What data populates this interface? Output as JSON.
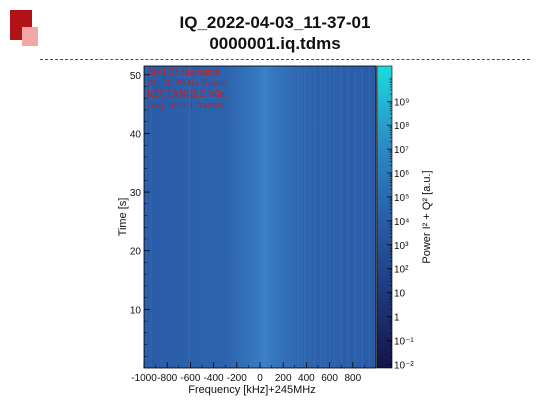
{
  "header": {
    "title_line1": "IQ_2022-04-03_11-37-01",
    "title_line2": "0000001.iq.tdms"
  },
  "colors": {
    "logo_dark": "#b01218",
    "logo_light": "#f2a6a6",
    "divider": "#c8181e",
    "annotation": "#c0201f",
    "palette_low": "#1a1a52",
    "palette_mid": "#2a64ae",
    "palette_high": "#19d9dc"
  },
  "chart_data": {
    "type": "heatmap",
    "xlabel": "Frequency [kHz]+245MHz",
    "ylabel": "Time [s]",
    "zlabel": "Power I² + Q² [a.u.]",
    "x_ticks": [
      -1000,
      -800,
      -600,
      -400,
      -200,
      0,
      200,
      400,
      600,
      800
    ],
    "x_tick_labels": [
      "-1000",
      "-800",
      "-600",
      "-400",
      "-200",
      "0",
      "200",
      "400",
      "600",
      "800"
    ],
    "xlim": [
      -1000,
      1000
    ],
    "y_ticks": [
      10,
      20,
      30,
      40,
      50
    ],
    "y_tick_labels": [
      "10",
      "20",
      "30",
      "40",
      "50"
    ],
    "ylim": [
      0,
      51.5
    ],
    "z_scale": "log",
    "z_ticks": [
      0.01,
      0.1,
      1,
      10,
      100,
      1000,
      10000,
      100000,
      1000000,
      10000000,
      100000000,
      1000000000
    ],
    "z_tick_labels": [
      "10⁻²",
      "10⁻¹",
      "1",
      "10",
      "10²",
      "10³",
      "10⁴",
      "10⁵",
      "10⁶",
      "10⁷",
      "10⁸",
      "10⁹"
    ],
    "zlim": [
      0.007,
      30000000000
    ],
    "annotations": [
      "Δt=1.31 ms/frame",
      "Δf=76.29 Hz/frame",
      "RECTANGLE Win.",
      "Avg. over 1 frames"
    ],
    "grid": false
  }
}
